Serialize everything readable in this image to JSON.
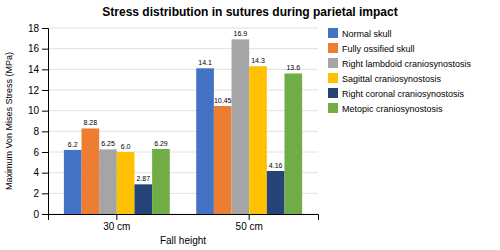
{
  "chart_data": {
    "type": "bar",
    "title": "Stress distribution in sutures during parietal impact",
    "x_label": "Fall height",
    "y_label": "Maximum Von Mises Stress (MPa)",
    "categories": [
      "30 cm",
      "50 cm"
    ],
    "series": [
      {
        "name": "Normal skull",
        "color": "#4472C4",
        "values": [
          6.2,
          14.1
        ]
      },
      {
        "name": "Fully ossified skull",
        "color": "#ED7D31",
        "values": [
          8.28,
          10.45
        ]
      },
      {
        "name": "Right lambdoid craniosynostosis",
        "color": "#A5A5A5",
        "values": [
          6.25,
          16.9
        ]
      },
      {
        "name": "Sagittal craniosynostosis",
        "color": "#FFC000",
        "values": [
          6.0,
          14.3
        ],
        "value_labels": [
          "6.0",
          "14.3"
        ]
      },
      {
        "name": "Right coronal craniosynostosis",
        "color": "#264478",
        "values": [
          2.87,
          4.16
        ]
      },
      {
        "name": "Metopic craniosynostosis",
        "color": "#70AD47",
        "values": [
          6.29,
          13.6
        ]
      }
    ],
    "ylim": [
      0,
      18
    ],
    "yticks": [
      0,
      2,
      4,
      6,
      8,
      10,
      12,
      14,
      16,
      18
    ],
    "grid": true,
    "legend": "right",
    "data_labels": true
  }
}
